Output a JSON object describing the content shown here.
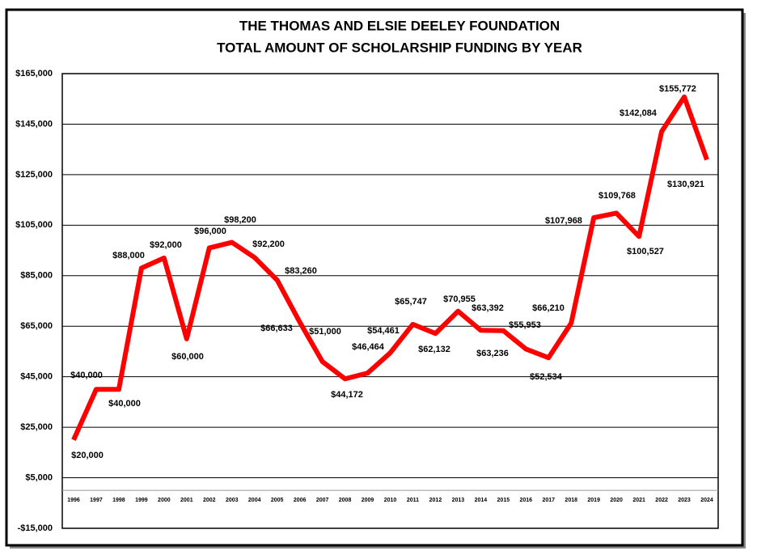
{
  "chart_data": {
    "type": "line",
    "title": [
      "THE THOMAS AND ELSIE DEELEY FOUNDATION",
      "TOTAL AMOUNT OF SCHOLARSHIP FUNDING BY YEAR"
    ],
    "categories": [
      "1996",
      "1997",
      "1998",
      "1999",
      "2000",
      "2001",
      "2002",
      "2003",
      "2004",
      "2005",
      "2006",
      "2007",
      "2008",
      "2009",
      "2010",
      "2011",
      "2012",
      "2013",
      "2014",
      "2015",
      "2016",
      "2017",
      "2018",
      "2019",
      "2020",
      "2021",
      "2022",
      "2023",
      "2024"
    ],
    "values": [
      20000,
      40000,
      40000,
      88000,
      92000,
      60000,
      96000,
      98200,
      92200,
      83260,
      66633,
      51000,
      44172,
      46464,
      54461,
      65747,
      62132,
      70955,
      63392,
      63236,
      55953,
      52534,
      66210,
      107968,
      109768,
      100527,
      142084,
      155772,
      130921
    ],
    "value_labels": [
      "$20,000",
      "$40,000",
      "$40,000",
      "$88,000",
      "$92,000",
      "$60,000",
      "$96,000",
      "$98,200",
      "$92,200",
      "$83,260",
      "$66,633",
      "$51,000",
      "$44,172",
      "$46,464",
      "$54,461",
      "$65,747",
      "$62,132",
      "$70,955",
      "$63,392",
      "$63,236",
      "$55,953",
      "$52,534",
      "$66,210",
      "$107,968",
      "$109,768",
      "$100,527",
      "$142,084",
      "$155,772",
      "$130,921"
    ],
    "color": "#ff0000",
    "ylim": [
      -15000,
      165000
    ],
    "yticks": [
      {
        "value": -15000,
        "label": "-$15,000"
      },
      {
        "value": 5000,
        "label": "$5,000"
      },
      {
        "value": 25000,
        "label": "$25,000"
      },
      {
        "value": 45000,
        "label": "$45,000"
      },
      {
        "value": 65000,
        "label": "$65,000"
      },
      {
        "value": 85000,
        "label": "$85,000"
      },
      {
        "value": 105000,
        "label": "$105,000"
      },
      {
        "value": 125000,
        "label": "$125,000"
      },
      {
        "value": 145000,
        "label": "$145,000"
      },
      {
        "value": 165000,
        "label": "$165,000"
      }
    ],
    "grid": true
  }
}
